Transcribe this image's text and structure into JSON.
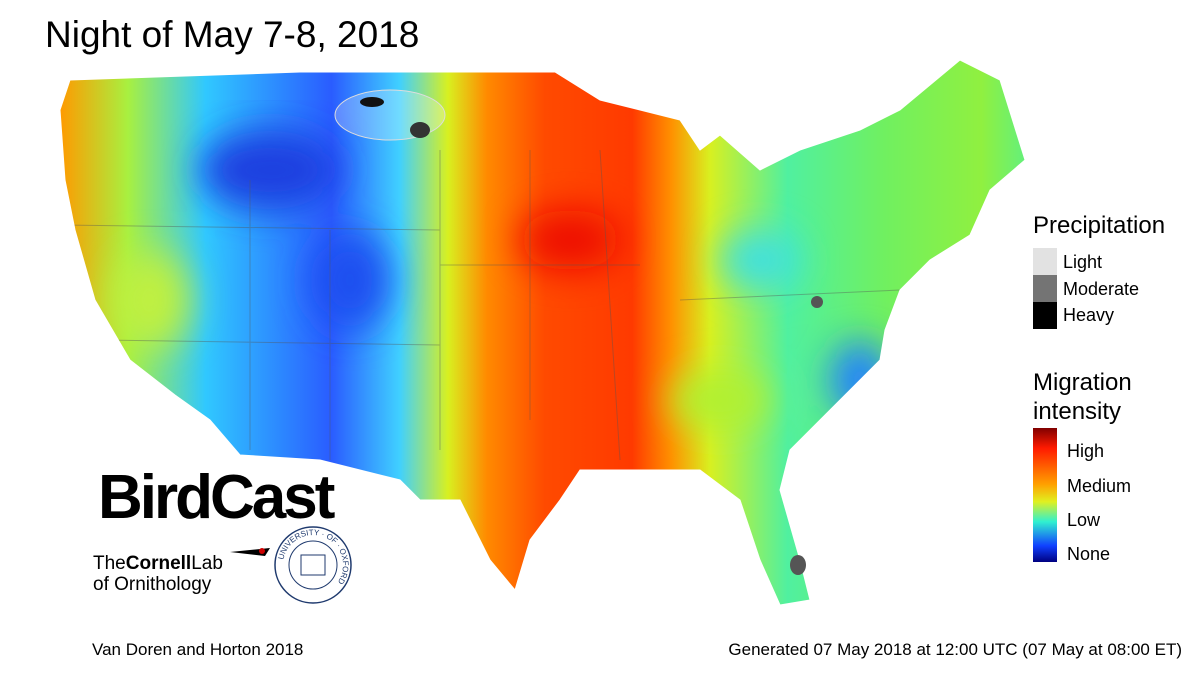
{
  "title": "Night of May 7-8, 2018",
  "legend": {
    "precipitation": {
      "title": "Precipitation",
      "items": [
        "Light",
        "Moderate",
        "Heavy"
      ]
    },
    "migration": {
      "title": "Migration intensity",
      "items": [
        "High",
        "Medium",
        "Low",
        "None"
      ]
    }
  },
  "logos": {
    "birdcast": "BirdCast",
    "cornell": {
      "parts": [
        "The",
        "Cornell",
        "Lab"
      ],
      "line2": "of Ornithology"
    },
    "oxford": "UNIVERSITY · OF · OXFORD"
  },
  "footer": {
    "left": "Van Doren and Horton 2018",
    "right": "Generated 07 May 2018 at 12:00 UTC (07 May at 08:00 ET)"
  }
}
